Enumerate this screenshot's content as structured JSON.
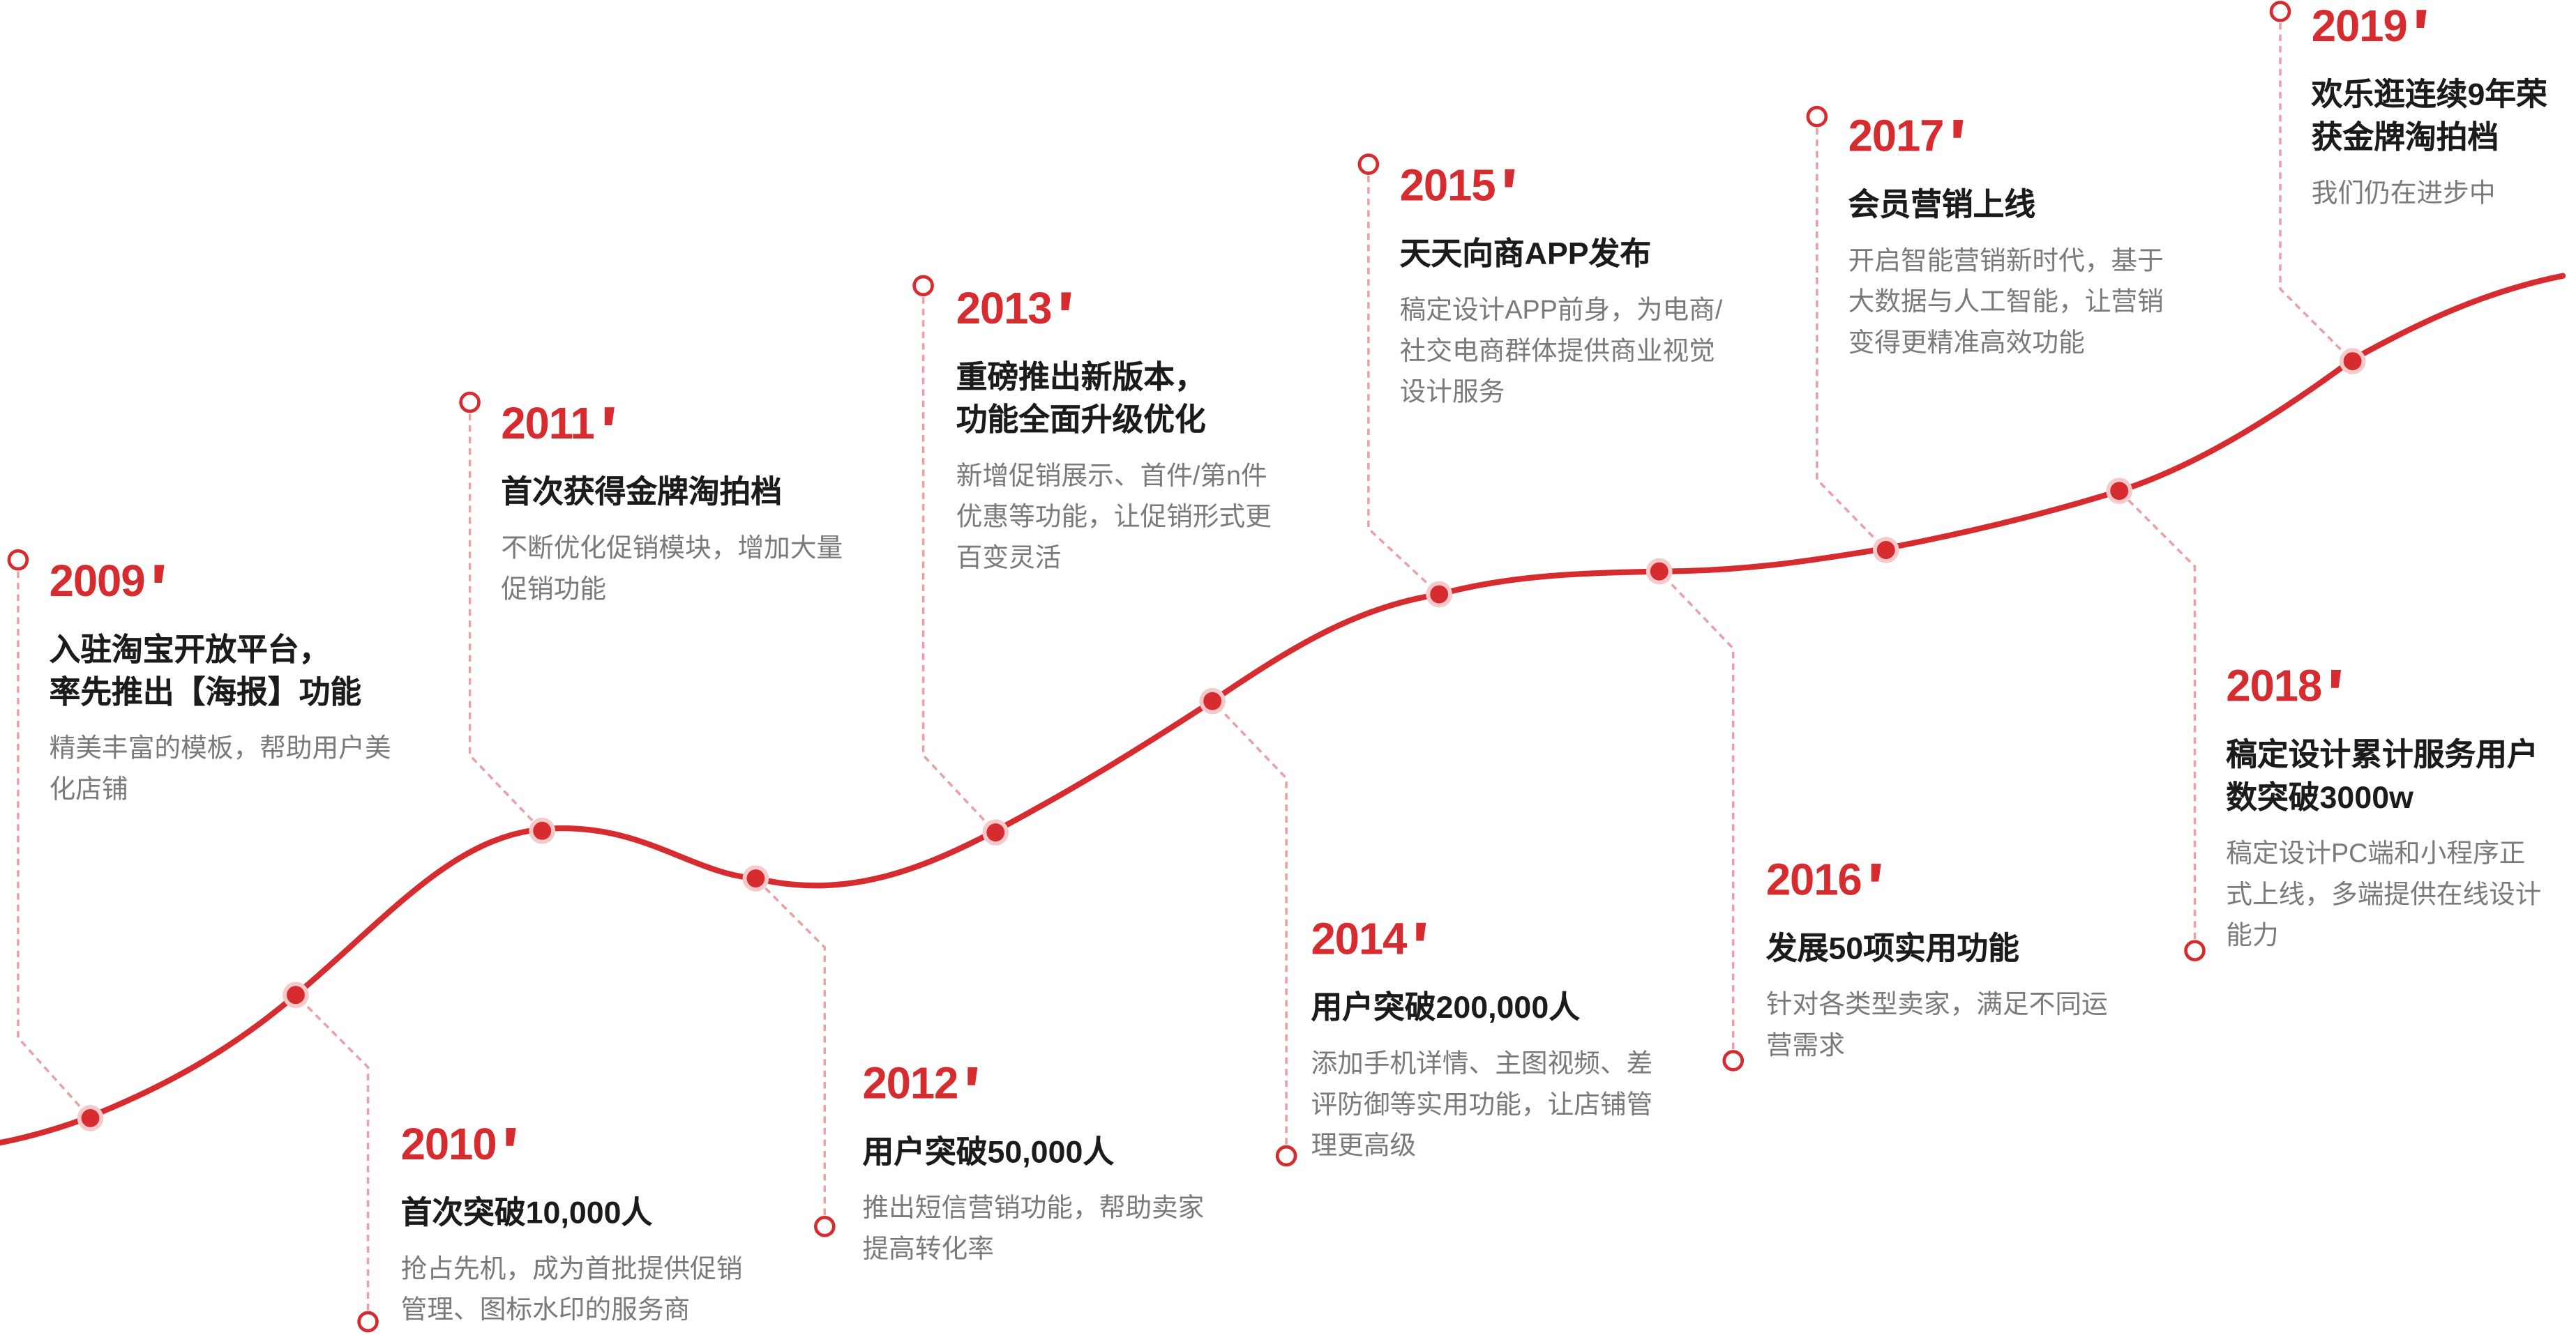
{
  "theme": {
    "accent": "#d62b2f",
    "title_color": "#1b1b1b",
    "desc_color": "#7a7a7a"
  },
  "milestones": [
    {
      "year": "2009",
      "title": "入驻淘宝开放平台，\n率先推出【海报】功能",
      "desc": "精美丰富的模板，帮助用户美\n化店铺"
    },
    {
      "year": "2010",
      "title": "首次突破10,000人",
      "desc": "抢占先机，成为首批提供促销\n管理、图标水印的服务商"
    },
    {
      "year": "2011",
      "title": "首次获得金牌淘拍档",
      "desc": "不断优化促销模块，增加大量\n促销功能"
    },
    {
      "year": "2012",
      "title": "用户突破50,000人",
      "desc": "推出短信营销功能，帮助卖家\n提高转化率"
    },
    {
      "year": "2013",
      "title": "重磅推出新版本，\n功能全面升级优化",
      "desc": "新增促销展示、首件/第n件\n优惠等功能，让促销形式更\n百变灵活"
    },
    {
      "year": "2014",
      "title": "用户突破200,000人",
      "desc": "添加手机详情、主图视频、差\n评防御等实用功能，让店铺管\n理更高级"
    },
    {
      "year": "2015",
      "title": "天天向商APP发布",
      "desc": "稿定设计APP前身，为电商/\n社交电商群体提供商业视觉\n设计服务"
    },
    {
      "year": "2016",
      "title": "发展50项实用功能",
      "desc": "针对各类型卖家，满足不同运\n营需求"
    },
    {
      "year": "2017",
      "title": "会员营销上线",
      "desc": "开启智能营销新时代，基于\n大数据与人工智能，让营销\n变得更精准高效功能"
    },
    {
      "year": "2018",
      "title": "稿定设计累计服务用户\n数突破3000w",
      "desc": "稿定设计PC端和小程序正\n式上线，多端提供在线设计\n能力"
    },
    {
      "year": "2019",
      "title": "欢乐逛连续9年荣\n获金牌淘拍档",
      "desc": "我们仍在进步中"
    }
  ]
}
